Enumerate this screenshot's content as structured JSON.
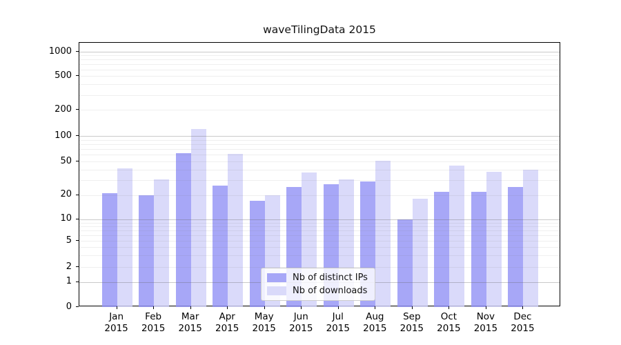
{
  "chart_data": {
    "type": "bar",
    "title": "waveTilingData 2015",
    "categories": [
      "Jan",
      "Feb",
      "Mar",
      "Apr",
      "May",
      "Jun",
      "Jul",
      "Aug",
      "Sep",
      "Oct",
      "Nov",
      "Dec"
    ],
    "category_year": "2015",
    "series": [
      {
        "name": "Nb of distinct IPs",
        "color": "#a9a9f7",
        "fill_rgba": "rgba(148,148,245,0.82)",
        "values": [
          21,
          20,
          63,
          26,
          17,
          25,
          27,
          29,
          10,
          22,
          22,
          25
        ]
      },
      {
        "name": "Nb of downloads",
        "color": "#d9d9f9",
        "fill_rgba": "rgba(210,210,249,0.82)",
        "values": [
          42,
          31,
          120,
          62,
          20,
          37,
          31,
          51,
          18,
          45,
          38,
          40
        ]
      }
    ],
    "y_ticks": [
      0,
      1,
      2,
      5,
      10,
      20,
      50,
      100,
      200,
      500,
      1000
    ],
    "y_scale": "log-like (compressed near zero)",
    "ylim": [
      0,
      1300
    ],
    "xlabel": "",
    "ylabel": "",
    "grid": true,
    "legend_position": "bottom-center-inside"
  }
}
